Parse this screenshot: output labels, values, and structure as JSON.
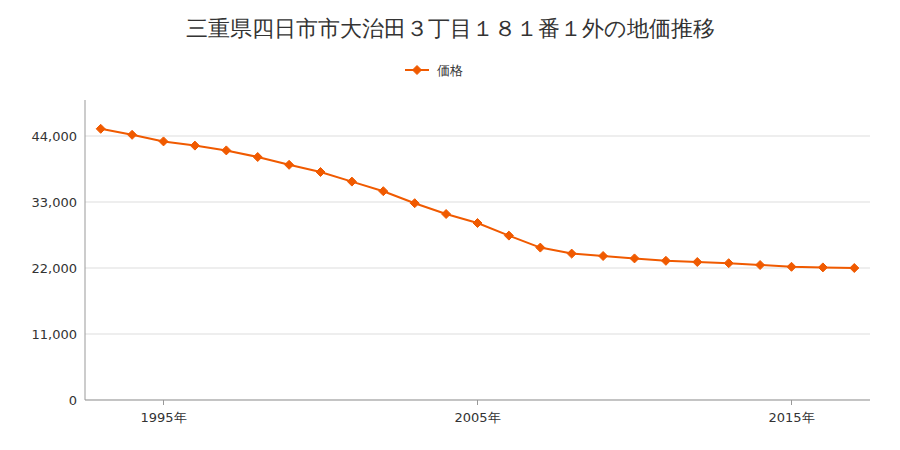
{
  "chart_data": {
    "type": "line",
    "title": "三重県四日市市大治田３丁目１８１番１外の地価推移",
    "x": [
      1993,
      1994,
      1995,
      1996,
      1997,
      1998,
      1999,
      2000,
      2001,
      2002,
      2003,
      2004,
      2005,
      2006,
      2007,
      2008,
      2009,
      2010,
      2011,
      2012,
      2013,
      2014,
      2015,
      2016,
      2017
    ],
    "series": [
      {
        "name": "価格",
        "color": "#f05a00",
        "marker": "diamond",
        "values": [
          45200,
          44200,
          43100,
          42400,
          41600,
          40500,
          39200,
          38000,
          36400,
          34800,
          32800,
          31000,
          29500,
          27400,
          25400,
          24400,
          24000,
          23600,
          23200,
          23000,
          22800,
          22500,
          22200,
          22100,
          22000
        ]
      }
    ],
    "xlim": [
      1992.5,
      2017.5
    ],
    "xticks": [
      {
        "value": 1995,
        "label": "1995年"
      },
      {
        "value": 2005,
        "label": "2005年"
      },
      {
        "value": 2015,
        "label": "2015年"
      }
    ],
    "ylim": [
      0,
      50000
    ],
    "yticks": [
      0,
      {
        "value": 11000,
        "label": "11,000"
      },
      {
        "value": 22000,
        "label": "22,000"
      },
      {
        "value": 33000,
        "label": "33,000"
      },
      {
        "value": 44000,
        "label": "44,000"
      }
    ],
    "grid": true,
    "legend": "top"
  }
}
